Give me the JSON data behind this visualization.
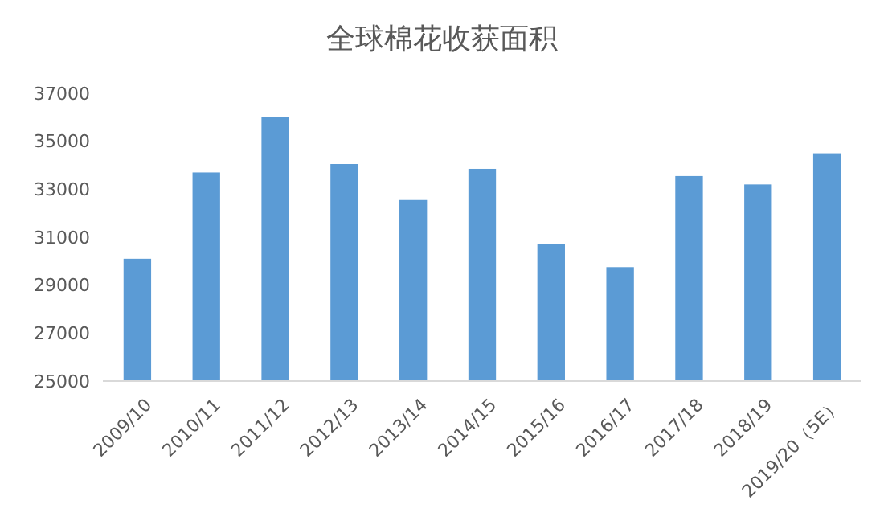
{
  "chart_data": {
    "type": "bar",
    "title": "全球棉花收获面积",
    "categories": [
      "2009/10",
      "2010/11",
      "2011/12",
      "2012/13",
      "2013/14",
      "2014/15",
      "2015/16",
      "2016/17",
      "2017/18",
      "2018/19",
      "2019/20（5E）"
    ],
    "values": [
      30100,
      33700,
      36000,
      34050,
      32550,
      33850,
      30700,
      29750,
      33550,
      33200,
      34500
    ],
    "color": "#5b9bd5",
    "ylim": [
      25000,
      37000
    ],
    "yticks": [
      25000,
      27000,
      29000,
      31000,
      33000,
      35000,
      37000
    ],
    "grid": false
  }
}
